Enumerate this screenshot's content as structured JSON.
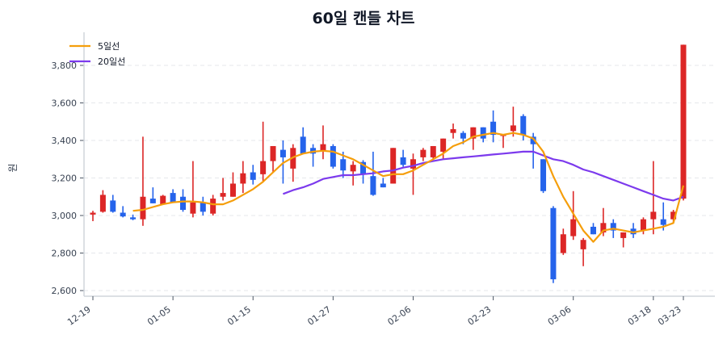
{
  "chart_data": {
    "type": "candlestick",
    "title": "60일 캔들 차트",
    "xlabel": "",
    "ylabel": "원",
    "ylim": [
      2590,
      3960
    ],
    "yticks": [
      2600,
      2800,
      3000,
      3200,
      3400,
      3600,
      3800
    ],
    "ytick_labels": [
      "2,600",
      "2,800",
      "3,000",
      "3,200",
      "3,400",
      "3,600",
      "3,800"
    ],
    "xtick_labels": [
      {
        "index": 0,
        "label": "12-19"
      },
      {
        "index": 8,
        "label": "01-05"
      },
      {
        "index": 16,
        "label": "01-15"
      },
      {
        "index": 24,
        "label": "01-27"
      },
      {
        "index": 32,
        "label": "02-06"
      },
      {
        "index": 40,
        "label": "02-23"
      },
      {
        "index": 48,
        "label": "03-06"
      },
      {
        "index": 56,
        "label": "03-18"
      },
      {
        "index": 59,
        "label": "03-23"
      }
    ],
    "grid": true,
    "legend_position": "upper-left",
    "colors": {
      "up": "#dc2626",
      "down": "#2563eb",
      "ma5": "#f59e0b",
      "ma20": "#7c3aed"
    },
    "legend": [
      {
        "label": "5일선",
        "color": "#f59e0b"
      },
      {
        "label": "20일선",
        "color": "#7c3aed"
      }
    ],
    "ohlc": [
      [
        3005,
        3025,
        2970,
        3015
      ],
      [
        3020,
        3135,
        3015,
        3110
      ],
      [
        3080,
        3110,
        3015,
        3020
      ],
      [
        3015,
        3050,
        2990,
        2995
      ],
      [
        2990,
        3005,
        2975,
        2980
      ],
      [
        2980,
        3420,
        2945,
        3100
      ],
      [
        3090,
        3150,
        3065,
        3065
      ],
      [
        3060,
        3110,
        3060,
        3105
      ],
      [
        3120,
        3140,
        3080,
        3070
      ],
      [
        3100,
        3140,
        3020,
        3030
      ],
      [
        3010,
        3290,
        2990,
        3070
      ],
      [
        3070,
        3100,
        3000,
        3020
      ],
      [
        3010,
        3110,
        3000,
        3090
      ],
      [
        3100,
        3200,
        3080,
        3120
      ],
      [
        3100,
        3230,
        3100,
        3170
      ],
      [
        3170,
        3290,
        3120,
        3225
      ],
      [
        3230,
        3270,
        3165,
        3190
      ],
      [
        3220,
        3500,
        3180,
        3290
      ],
      [
        3290,
        3370,
        3230,
        3370
      ],
      [
        3350,
        3400,
        3170,
        3310
      ],
      [
        3250,
        3380,
        3180,
        3360
      ],
      [
        3420,
        3470,
        3340,
        3330
      ],
      [
        3360,
        3380,
        3260,
        3330
      ],
      [
        3340,
        3480,
        3300,
        3380
      ],
      [
        3370,
        3380,
        3250,
        3260
      ],
      [
        3300,
        3340,
        3200,
        3240
      ],
      [
        3235,
        3290,
        3160,
        3270
      ],
      [
        3285,
        3295,
        3170,
        3220
      ],
      [
        3210,
        3340,
        3105,
        3110
      ],
      [
        3170,
        3200,
        3150,
        3150
      ],
      [
        3170,
        3360,
        3170,
        3360
      ],
      [
        3310,
        3350,
        3260,
        3270
      ],
      [
        3250,
        3330,
        3110,
        3300
      ],
      [
        3310,
        3360,
        3290,
        3350
      ],
      [
        3310,
        3370,
        3300,
        3370
      ],
      [
        3340,
        3410,
        3300,
        3410
      ],
      [
        3440,
        3490,
        3410,
        3460
      ],
      [
        3440,
        3450,
        3380,
        3410
      ],
      [
        3410,
        3470,
        3350,
        3470
      ],
      [
        3470,
        3470,
        3390,
        3410
      ],
      [
        3500,
        3560,
        3390,
        3430
      ],
      [
        3430,
        3430,
        3360,
        3430
      ],
      [
        3450,
        3580,
        3420,
        3480
      ],
      [
        3530,
        3540,
        3400,
        3430
      ],
      [
        3420,
        3440,
        3250,
        3380
      ],
      [
        3300,
        3300,
        3120,
        3130
      ],
      [
        3040,
        3050,
        2640,
        2660
      ],
      [
        2800,
        2930,
        2790,
        2900
      ],
      [
        2890,
        3130,
        2870,
        2980
      ],
      [
        2820,
        2880,
        2730,
        2870
      ],
      [
        2940,
        2960,
        2900,
        2900
      ],
      [
        2910,
        3040,
        2890,
        2960
      ],
      [
        2960,
        2980,
        2880,
        2920
      ],
      [
        2880,
        2910,
        2830,
        2910
      ],
      [
        2930,
        2960,
        2880,
        2900
      ],
      [
        2920,
        2990,
        2900,
        2980
      ],
      [
        2980,
        3290,
        2900,
        3020
      ],
      [
        2980,
        3070,
        2920,
        2950
      ],
      [
        2980,
        3030,
        2960,
        3020
      ],
      [
        3090,
        3910,
        3080,
        3910
      ]
    ],
    "ma5": [
      null,
      null,
      null,
      null,
      3025,
      3030,
      3045,
      3060,
      3070,
      3075,
      3075,
      3070,
      3060,
      3060,
      3080,
      3110,
      3140,
      3180,
      3230,
      3280,
      3310,
      3330,
      3340,
      3345,
      3340,
      3320,
      3300,
      3270,
      3240,
      3210,
      3220,
      3220,
      3240,
      3270,
      3300,
      3330,
      3370,
      3390,
      3420,
      3430,
      3440,
      3430,
      3440,
      3430,
      3410,
      3340,
      3210,
      3100,
      3010,
      2920,
      2860,
      2920,
      2930,
      2920,
      2910,
      2920,
      2930,
      2940,
      2960,
      3160
    ],
    "ma20": [
      null,
      null,
      null,
      null,
      null,
      null,
      null,
      null,
      null,
      null,
      null,
      null,
      null,
      null,
      null,
      null,
      null,
      null,
      null,
      3115,
      3135,
      3150,
      3170,
      3195,
      3205,
      3215,
      3215,
      3220,
      3225,
      3235,
      3240,
      3255,
      3265,
      3280,
      3290,
      3300,
      3305,
      3310,
      3315,
      3320,
      3325,
      3330,
      3335,
      3340,
      3340,
      3320,
      3300,
      3290,
      3270,
      3245,
      3230,
      3210,
      3190,
      3170,
      3150,
      3130,
      3110,
      3090,
      3080,
      3100
    ]
  }
}
